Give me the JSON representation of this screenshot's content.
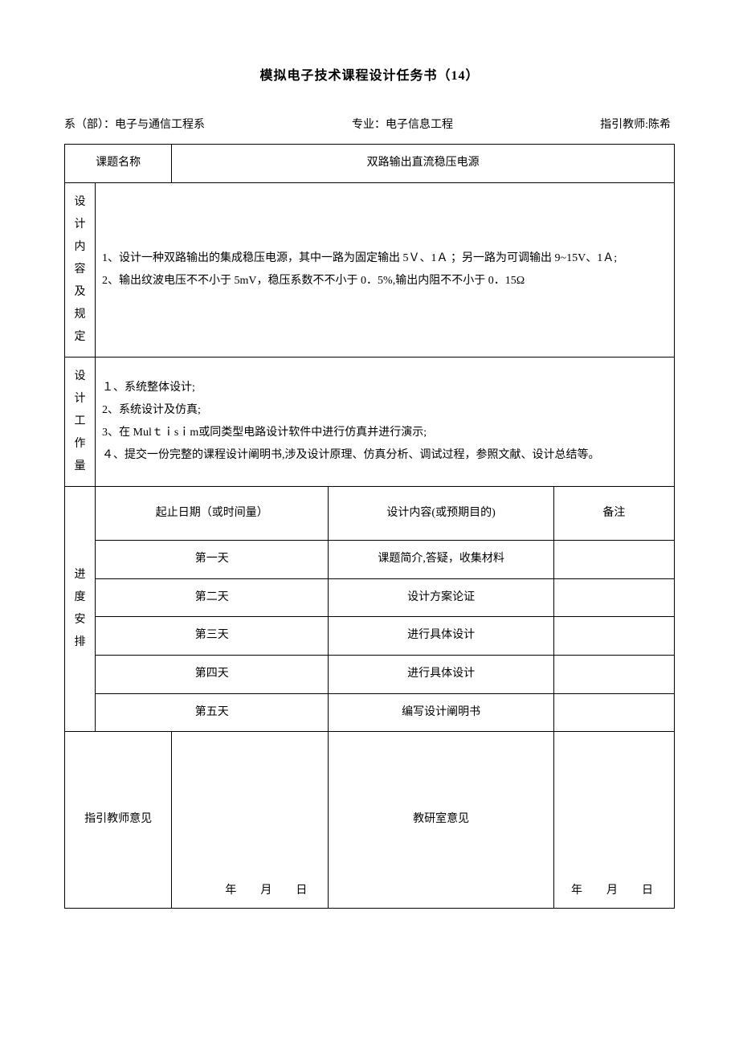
{
  "title": "模拟电子技术课程设计任务书（14）",
  "header": {
    "dept_label": "系（部）：",
    "dept_value": "电子与通信工程系",
    "major_label": "专业：",
    "major_value": "电子信息工程",
    "teacher_label": "指引教师:",
    "teacher_value": "陈希"
  },
  "labels": {
    "topic_name": "课题名称",
    "topic_value": "双路输出直流稳压电源",
    "design_content_label": "设计内容及规定",
    "design_workload_label": "设计工作量",
    "schedule_label": "进度安排",
    "schedule_headers": {
      "h1": "起止日期（或时间量）",
      "h2": "设计内容(或预期目的)",
      "h3": "备注"
    },
    "teacher_opinion": "指引教师意见",
    "office_opinion": "教研室意见",
    "date_text": "年　月　日"
  },
  "design_content": "1、设计一种双路输出的集成稳压电源，其中一路为固定输出 5Ｖ、1Ａ ；另一路为可调输出 9~15V、1Ａ;\n2、输出纹波电压不不小于 5mV，稳压系数不不小于 0．5%,输出内阻不不小于 0．15Ω",
  "design_workload": "１、系统整体设计;\n2、系统设计及仿真;\n3、在 Mulｔｉsｉm或同类型电路设计软件中进行仿真并进行演示;\n４、提交一份完整的课程设计阐明书,涉及设计原理、仿真分析、调试过程，参照文献、设计总结等。",
  "schedule": [
    {
      "day": "第一天",
      "content": "课题简介,答疑，收集材料",
      "note": ""
    },
    {
      "day": "第二天",
      "content": "设计方案论证",
      "note": ""
    },
    {
      "day": "第三天",
      "content": "进行具体设计",
      "note": ""
    },
    {
      "day": "第四天",
      "content": "进行具体设计",
      "note": ""
    },
    {
      "day": "第五天",
      "content": "编写设计阐明书",
      "note": ""
    }
  ]
}
